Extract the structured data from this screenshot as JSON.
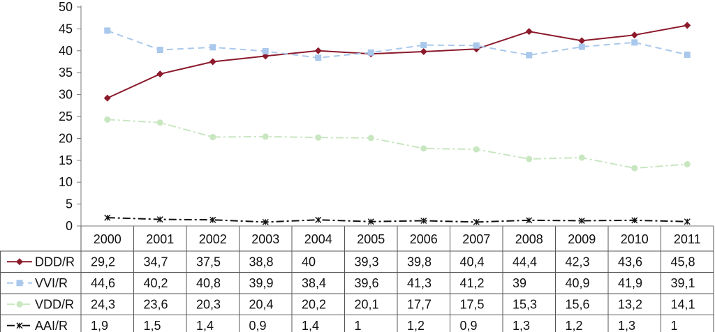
{
  "chart_data": {
    "type": "line",
    "title": "",
    "xlabel": "",
    "ylabel": "",
    "ylim": [
      0,
      50
    ],
    "yticks": [
      "0",
      "5",
      "10",
      "15",
      "20",
      "25",
      "30",
      "35",
      "40",
      "45",
      "50"
    ],
    "grid": false,
    "legend": "data-table-rows",
    "categories": [
      "2000",
      "2001",
      "2002",
      "2003",
      "2004",
      "2005",
      "2006",
      "2007",
      "2008",
      "2009",
      "2010",
      "2011"
    ],
    "series": [
      {
        "name": "DDD/R",
        "color": "#8b1a2b",
        "marker": "diamond",
        "dash": "solid",
        "values": [
          29.2,
          34.7,
          37.5,
          38.8,
          40,
          39.3,
          39.8,
          40.4,
          44.4,
          42.3,
          43.6,
          45.8
        ],
        "labels": [
          "29,2",
          "34,7",
          "37,5",
          "38,8",
          "40",
          "39,3",
          "39,8",
          "40,4",
          "44,4",
          "42,3",
          "43,6",
          "45,8"
        ]
      },
      {
        "name": "VVI/R",
        "color": "#a9c8ec",
        "marker": "square",
        "dash": "dashed",
        "values": [
          44.6,
          40.2,
          40.8,
          39.9,
          38.4,
          39.6,
          41.3,
          41.2,
          39,
          40.9,
          41.9,
          39.1
        ],
        "labels": [
          "44,6",
          "40,2",
          "40,8",
          "39,9",
          "38,4",
          "39,6",
          "41,3",
          "41,2",
          "39",
          "40,9",
          "41,9",
          "39,1"
        ]
      },
      {
        "name": "VDD/R",
        "color": "#c8e6c0",
        "marker": "circle",
        "dash": "dashdot",
        "values": [
          24.3,
          23.6,
          20.3,
          20.4,
          20.2,
          20.1,
          17.7,
          17.5,
          15.3,
          15.6,
          13.2,
          14.1
        ],
        "labels": [
          "24,3",
          "23,6",
          "20,3",
          "20,4",
          "20,2",
          "20,1",
          "17,7",
          "17,5",
          "15,3",
          "15,6",
          "13,2",
          "14,1"
        ]
      },
      {
        "name": "AAI/R",
        "color": "#111111",
        "marker": "star",
        "dash": "dashdot",
        "values": [
          1.9,
          1.5,
          1.4,
          0.9,
          1.4,
          1,
          1.2,
          0.9,
          1.3,
          1.2,
          1.3,
          1
        ],
        "labels": [
          "1,9",
          "1,5",
          "1,4",
          "0,9",
          "1,4",
          "1",
          "1,2",
          "0,9",
          "1,3",
          "1,2",
          "1,3",
          "1"
        ]
      }
    ]
  }
}
